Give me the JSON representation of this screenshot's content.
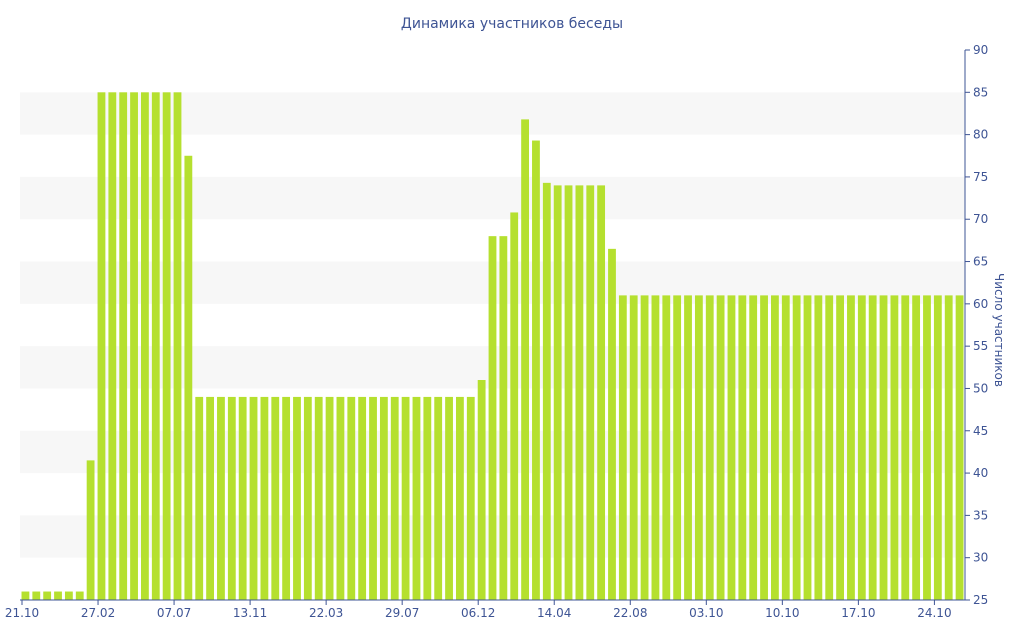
{
  "chart_data": {
    "type": "bar",
    "title": "Динамика участников беседы",
    "xlabel": "",
    "ylabel": "Число участников",
    "ylim": [
      25,
      90
    ],
    "yticks": [
      25,
      30,
      35,
      40,
      45,
      50,
      55,
      60,
      65,
      70,
      75,
      80,
      85,
      90
    ],
    "grid": "alternating-bands",
    "y_axis_position": "right",
    "x_tick_labels": [
      {
        "label": "21.10",
        "index": 0
      },
      {
        "label": "27.02",
        "index": 7
      },
      {
        "label": "07.07",
        "index": 14
      },
      {
        "label": "13.11",
        "index": 21
      },
      {
        "label": "22.03",
        "index": 28
      },
      {
        "label": "29.07",
        "index": 35
      },
      {
        "label": "06.12",
        "index": 42
      },
      {
        "label": "14.04",
        "index": 49
      },
      {
        "label": "22.08",
        "index": 56
      },
      {
        "label": "03.10",
        "index": 63
      },
      {
        "label": "10.10",
        "index": 70
      },
      {
        "label": "17.10",
        "index": 77
      },
      {
        "label": "24.10",
        "index": 84
      }
    ],
    "values": [
      26,
      26,
      26,
      26,
      26,
      26,
      41.5,
      85,
      85,
      85,
      85,
      85,
      85,
      85,
      85,
      77.5,
      49,
      49,
      49,
      49,
      49,
      49,
      49,
      49,
      49,
      49,
      49,
      49,
      49,
      49,
      49,
      49,
      49,
      49,
      49,
      49,
      49,
      49,
      49,
      49,
      49,
      49,
      51,
      68,
      68,
      70.8,
      81.8,
      79.3,
      74.3,
      74,
      74,
      74,
      74,
      74,
      66.5,
      61,
      61,
      61,
      61,
      61,
      61,
      61,
      61,
      61,
      61,
      61,
      61,
      61,
      61,
      61,
      61,
      61,
      61,
      61,
      61,
      61,
      61,
      61,
      61,
      61,
      61,
      61,
      61,
      61,
      61,
      61,
      61
    ],
    "colors": {
      "bar": "#b5e02f",
      "band": "#f7f7f7",
      "text": "#3e5494",
      "axis": "#3e5494"
    }
  }
}
